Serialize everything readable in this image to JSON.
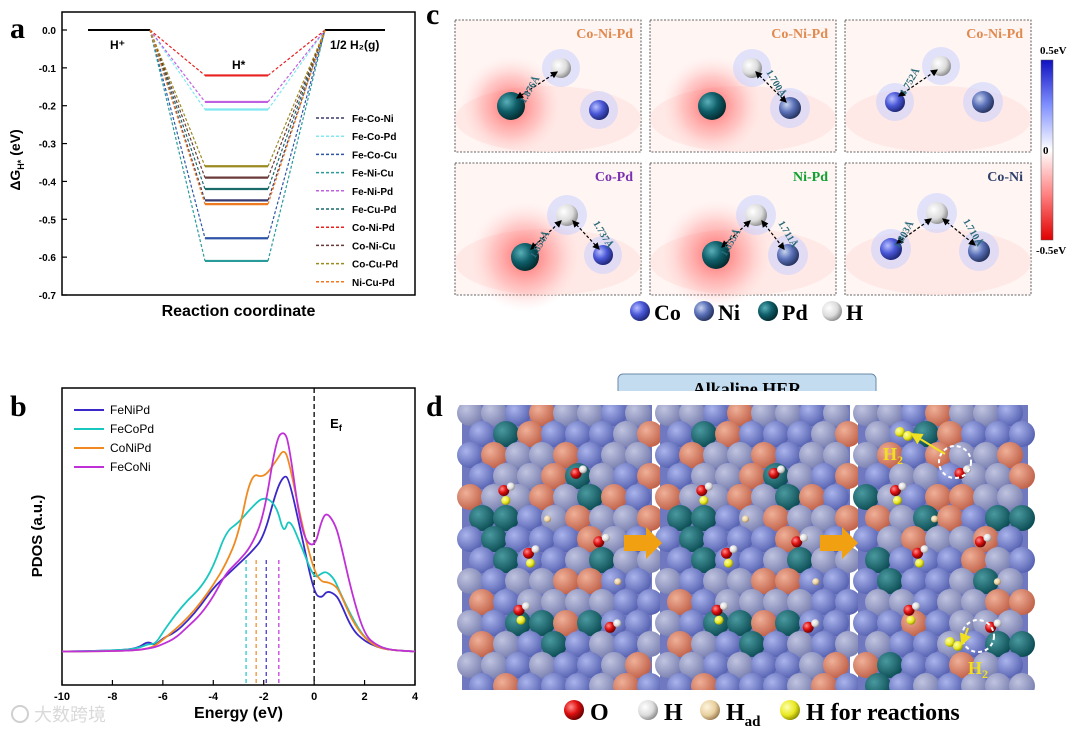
{
  "panel_labels": {
    "a": "a",
    "b": "b",
    "c": "c",
    "d": "d"
  },
  "watermark": "大数跨境",
  "colors": {
    "Fe-Co-Ni": "#3a3a6e",
    "Fe-Co-Pd": "#7fe8f0",
    "Fe-Co-Cu": "#2f55a8",
    "Fe-Ni-Cu": "#2a9a9a",
    "Fe-Ni-Pd": "#c060e0",
    "Fe-Cu-Pd": "#1a6a6a",
    "Co-Ni-Pd": "#e82020",
    "Co-Ni-Cu": "#6a3a3a",
    "Co-Cu-Pd": "#9a8a20",
    "Ni-Cu-Pd": "#f07a20",
    "FeNiPd": "#3a28c8",
    "FeCoPd": "#18c8c0",
    "CoNiPd": "#f08a20",
    "FeCoNi": "#c030d8",
    "Co": "#4a58d8",
    "Ni": "#5a70b8",
    "Pd": "#0f5f6a",
    "H": "#e8e8e8",
    "O": "#e01010",
    "Had": "#e8d0a0",
    "Hreact": "#e8e820"
  },
  "chart_data": [
    {
      "id": "a",
      "type": "line",
      "title": "",
      "xlabel": "Reaction coordinate",
      "ylabel": "ΔG",
      "ylabel_sub": "H*",
      "ylabel_unit": " (eV)",
      "ylim": [
        -0.7,
        0.0
      ],
      "yticks": [
        "0.0",
        "-0.1",
        "-0.2",
        "-0.3",
        "-0.4",
        "-0.5",
        "-0.6",
        "-0.7"
      ],
      "state_labels": {
        "initial": "H⁺",
        "intermediate": "H*",
        "final": "1/2 H₂(g)"
      },
      "series": [
        {
          "name": "Fe-Co-Ni",
          "value": -0.45
        },
        {
          "name": "Fe-Co-Pd",
          "value": -0.21
        },
        {
          "name": "Fe-Co-Cu",
          "value": -0.55
        },
        {
          "name": "Fe-Ni-Cu",
          "value": -0.61
        },
        {
          "name": "Fe-Ni-Pd",
          "value": -0.19
        },
        {
          "name": "Fe-Cu-Pd",
          "value": -0.42
        },
        {
          "name": "Co-Ni-Pd",
          "value": -0.12
        },
        {
          "name": "Co-Ni-Cu",
          "value": -0.39
        },
        {
          "name": "Co-Cu-Pd",
          "value": -0.36
        },
        {
          "name": "Ni-Cu-Pd",
          "value": -0.46
        }
      ]
    },
    {
      "id": "b",
      "type": "line",
      "xlabel": "Energy (eV)",
      "ylabel": "PDOS (a.u.)",
      "xlim": [
        -10,
        4
      ],
      "xticks": [
        "-10",
        "-8",
        "-6",
        "-4",
        "-2",
        "0",
        "2",
        "4"
      ],
      "fermi_label": "E",
      "fermi_sub": "f",
      "x": [
        -10,
        -8,
        -7,
        -6.6,
        -6.3,
        -6,
        -5.5,
        -5,
        -4.5,
        -4,
        -3.5,
        -3,
        -2.5,
        -2,
        -1.5,
        -1.2,
        -1,
        -0.5,
        0,
        0.3,
        0.5,
        0.8,
        1,
        1.5,
        2,
        2.5,
        3,
        4
      ],
      "series": [
        {
          "name": "FeNiPd",
          "d_band_center": -1.9,
          "values": [
            1,
            1.5,
            3,
            8,
            5,
            10,
            14,
            22,
            32,
            44,
            52,
            60,
            68,
            78,
            110,
            120,
            118,
            80,
            40,
            37,
            42,
            40,
            36,
            16,
            8,
            4,
            2,
            1
          ]
        },
        {
          "name": "FeCoPd",
          "d_band_center": -2.7,
          "values": [
            1,
            1.5,
            3,
            6,
            6,
            14,
            26,
            36,
            44,
            58,
            82,
            88,
            98,
            106,
            100,
            80,
            92,
            72,
            50,
            54,
            55,
            50,
            42,
            24,
            10,
            5,
            2,
            1
          ]
        },
        {
          "name": "CoNiPd",
          "d_band_center": -2.3,
          "values": [
            1,
            1.2,
            2,
            3,
            5,
            9,
            16,
            24,
            34,
            46,
            60,
            80,
            122,
            118,
            130,
            138,
            130,
            88,
            55,
            48,
            48,
            46,
            42,
            22,
            10,
            4,
            2,
            1
          ]
        },
        {
          "name": "FeCoNi",
          "d_band_center": -1.4,
          "values": [
            1,
            1.2,
            2,
            3,
            4,
            6,
            10,
            18,
            26,
            38,
            54,
            62,
            72,
            92,
            145,
            150,
            142,
            80,
            70,
            90,
            95,
            88,
            78,
            40,
            12,
            5,
            2,
            1
          ]
        }
      ]
    }
  ],
  "panel_c": {
    "cells": [
      {
        "label": "Co-Ni-Pd",
        "bonds": [
          "1.876Å"
        ]
      },
      {
        "label": "Co-Ni-Pd",
        "bonds": [
          "1.700Å"
        ]
      },
      {
        "label": "Co-Ni-Pd",
        "bonds": [
          "1.752Å"
        ]
      },
      {
        "label": "Co-Pd",
        "bonds": [
          "1.854Å",
          "1.737Å"
        ]
      },
      {
        "label": "Ni-Pd",
        "bonds": [
          "1.855Å",
          "1.711Å"
        ]
      },
      {
        "label": "Co-Ni",
        "bonds": [
          "1.803Å",
          "1.710Å"
        ]
      }
    ],
    "colorbar": {
      "max": "0.5eV",
      "mid": "0",
      "min": "-0.5eV"
    },
    "legend": [
      "Co",
      "Ni",
      "Pd",
      "H"
    ]
  },
  "panel_d": {
    "banner": "Alkaline HER",
    "product_label": "H",
    "product_sub": "2",
    "legend": {
      "o": "O",
      "h": "H",
      "had": "H",
      "had_sub": "ad",
      "react": "H for reactions"
    }
  }
}
